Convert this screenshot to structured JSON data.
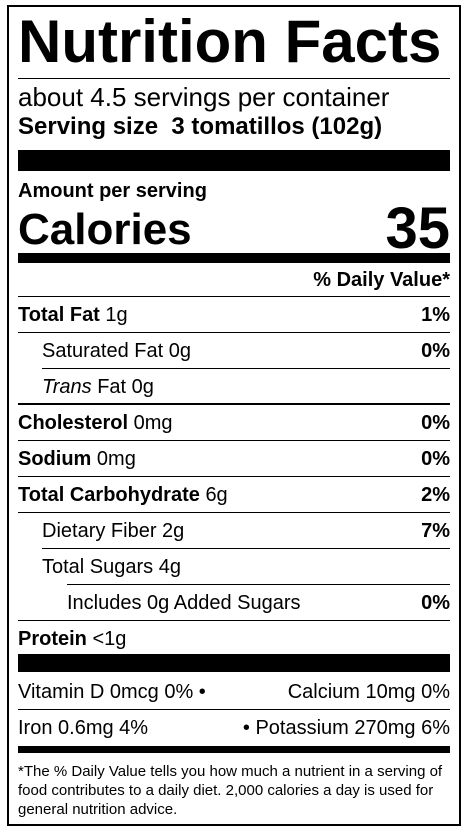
{
  "title": "Nutrition Facts",
  "servings": "about 4.5 servings per container",
  "serving_size": {
    "label": "Serving size",
    "value": "3 tomatillos (102g)"
  },
  "amount_per_serving": "Amount per serving",
  "calories": {
    "label": "Calories",
    "value": "35"
  },
  "daily_value_header": "% Daily Value*",
  "nutrients": [
    {
      "name": "Total Fat",
      "amount": "1g",
      "dv": "1%"
    },
    {
      "name": "Saturated Fat",
      "amount": "0g",
      "dv": "0%"
    },
    {
      "name_italic": "Trans",
      "name": "Fat",
      "amount": "0g"
    },
    {
      "name": "Cholesterol",
      "amount": "0mg",
      "dv": "0%"
    },
    {
      "name": "Sodium",
      "amount": "0mg",
      "dv": "0%"
    },
    {
      "name": "Total Carbohydrate",
      "amount": "6g",
      "dv": "2%"
    },
    {
      "name": "Dietary Fiber",
      "amount": "2g",
      "dv": "7%"
    },
    {
      "name": "Total Sugars",
      "amount": "4g"
    },
    {
      "name": "Includes 0g Added Sugars",
      "dv": "0%"
    },
    {
      "name": "Protein",
      "amount": "<1g"
    }
  ],
  "vitamins": [
    {
      "left": "Vitamin D 0mcg 0% •",
      "right": "Calcium 10mg 0%"
    },
    {
      "left": "Iron 0.6mg 4%",
      "right": "• Potassium 270mg 6%"
    }
  ],
  "footnote": "*The % Daily Value tells you how much a nutrient in a serving of food contributes to a daily diet. 2,000 calories a day is used for general nutrition advice."
}
